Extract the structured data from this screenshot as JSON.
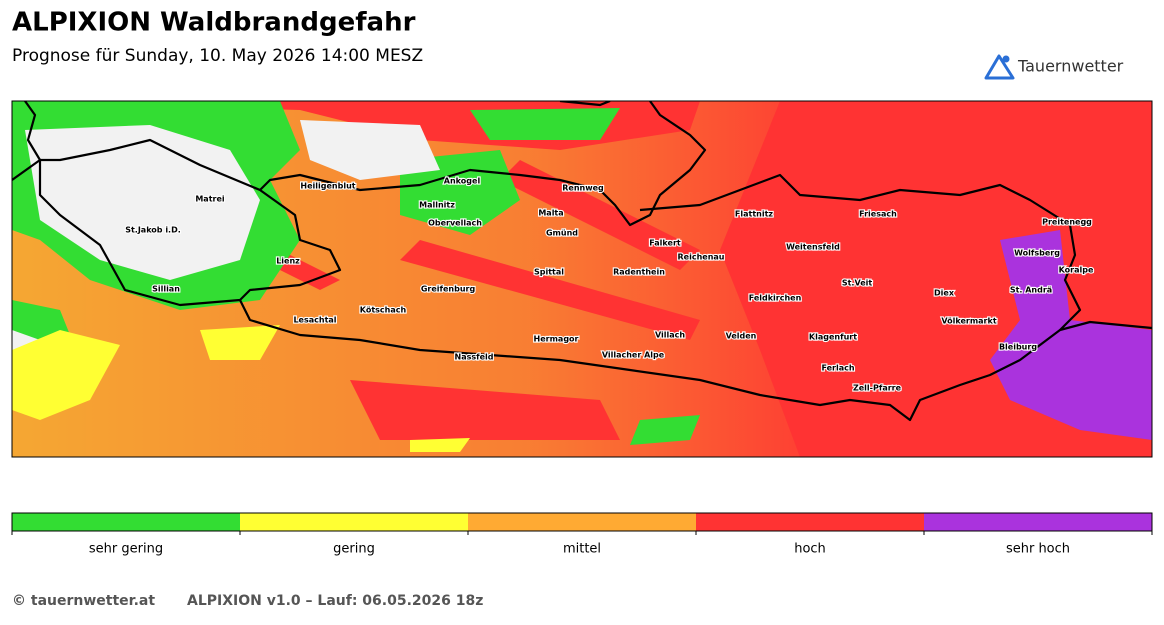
{
  "header": {
    "title": "ALPIXION Waldbrandgefahr",
    "subtitle": "Prognose für Sunday, 10. May 2026 14:00 MESZ",
    "logo": "Tauernwetter"
  },
  "map": {
    "places": [
      "Matrei",
      "Heiligenblut",
      "Ankogel",
      "Rennweg",
      "Mallnitz",
      "Obervellach",
      "Malta",
      "Flattnitz",
      "Friesach",
      "Preitenegg",
      "St.Jakob i.D.",
      "Gmünd",
      "Falkert",
      "Weitensfeld",
      "Reichenau",
      "Wolfsberg",
      "Lienz",
      "Spittal",
      "Radenthein",
      "Koralpe",
      "St.Veit",
      "Sillian",
      "Greifenburg",
      "Diex",
      "St. Andrä",
      "Feldkirchen",
      "Kötschach",
      "Lesachtal",
      "Völkermarkt",
      "Villach",
      "Velden",
      "Klagenfurt",
      "Hermagor",
      "Bleiburg",
      "Nassfeld",
      "Villacher Alpe",
      "Ferlach",
      "Zell-Pfarre"
    ]
  },
  "legend": {
    "items": [
      {
        "label": "sehr gering",
        "color": "#33dd33"
      },
      {
        "label": "gering",
        "color": "#ffff33"
      },
      {
        "label": "mittel",
        "color": "#ffaa33"
      },
      {
        "label": "hoch",
        "color": "#ff3333"
      },
      {
        "label": "sehr hoch",
        "color": "#aa33dd"
      }
    ]
  },
  "footer": {
    "copyright": "© tauernwetter.at",
    "run": "ALPIXION v1.0 – Lauf: 06.05.2026 18z"
  }
}
